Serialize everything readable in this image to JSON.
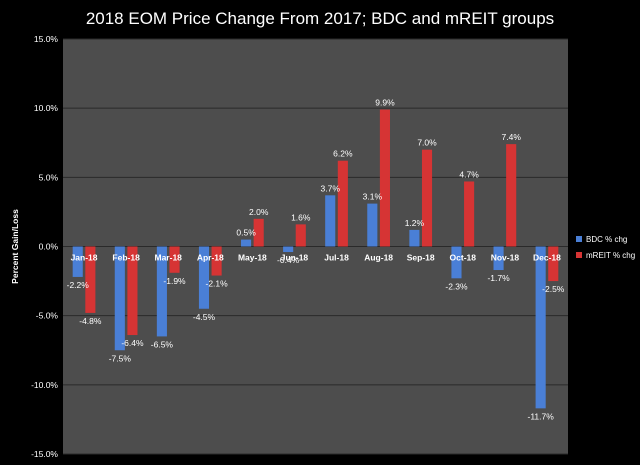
{
  "chart_data": {
    "type": "bar",
    "title": "2018 EOM Price Change From 2017; BDC and mREIT groups",
    "ylabel": "Percent Gain/Loss",
    "xlabel": "",
    "ylim": [
      -15,
      15
    ],
    "yticks": [
      -15,
      -10,
      -5,
      0,
      5,
      10,
      15
    ],
    "ytick_labels": [
      "-15.0%",
      "-10.0%",
      "-5.0%",
      "0.0%",
      "5.0%",
      "10.0%",
      "15.0%"
    ],
    "categories": [
      "Jan-18",
      "Feb-18",
      "Mar-18",
      "Apr-18",
      "May-18",
      "Jun-18",
      "Jul-18",
      "Aug-18",
      "Sep-18",
      "Oct-18",
      "Nov-18",
      "Dec-18"
    ],
    "series": [
      {
        "name": "BDC % chg",
        "color": "#4a7fd6",
        "values": [
          -2.2,
          -7.5,
          -6.5,
          -4.5,
          0.5,
          -0.4,
          3.7,
          3.1,
          1.2,
          -2.3,
          -1.7,
          -11.7
        ],
        "labels": [
          "-2.2%",
          "-7.5%",
          "-6.5%",
          "-4.5%",
          "0.5%",
          "-0.4%",
          "3.7%",
          "3.1%",
          "1.2%",
          "-2.3%",
          "-1.7%",
          "-11.7%"
        ]
      },
      {
        "name": "mREIT % chg",
        "color": "#d63434",
        "values": [
          -4.8,
          -6.4,
          -1.9,
          -2.1,
          2.0,
          1.6,
          6.2,
          9.9,
          7.0,
          4.7,
          7.4,
          -2.5
        ],
        "labels": [
          "-4.8%",
          "-6.4%",
          "-1.9%",
          "-2.1%",
          "2.0%",
          "1.6%",
          "6.2%",
          "9.9%",
          "7.0%",
          "4.7%",
          "7.4%",
          "-2.5%"
        ]
      }
    ],
    "grid": true,
    "legend": "right",
    "colors": {
      "background": "#000000",
      "plot_area": "#4d4d4d",
      "gridline": "#2a2a2a",
      "text": "#ffffff"
    }
  }
}
